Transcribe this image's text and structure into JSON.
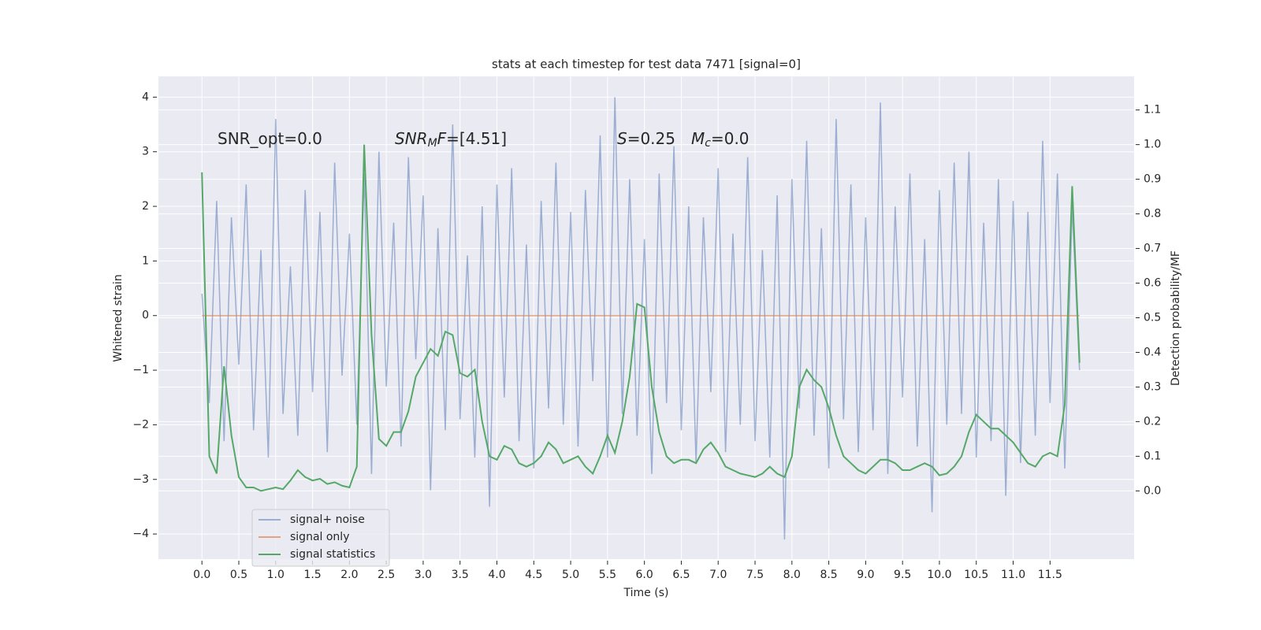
{
  "chart_data": {
    "type": "line",
    "title": "stats at each timestep for test data 7471 [signal=0]",
    "xlabel": "Time (s)",
    "ylabel": "Whitened strain",
    "y2label": "Detection probability/MF",
    "x": [
      0,
      0.1,
      0.2,
      0.3,
      0.4,
      0.5,
      0.6,
      0.7,
      0.8,
      0.9,
      1,
      1.1,
      1.2,
      1.3,
      1.4,
      1.5,
      1.6,
      1.7,
      1.8,
      1.9,
      2,
      2.1,
      2.2,
      2.3,
      2.4,
      2.5,
      2.6,
      2.7,
      2.8,
      2.9,
      3,
      3.1,
      3.2,
      3.3,
      3.4,
      3.5,
      3.6,
      3.7,
      3.8,
      3.9,
      4,
      4.1,
      4.2,
      4.3,
      4.4,
      4.5,
      4.6,
      4.7,
      4.8,
      4.9,
      5,
      5.1,
      5.2,
      5.3,
      5.4,
      5.5,
      5.6,
      5.7,
      5.8,
      5.9,
      6,
      6.1,
      6.2,
      6.3,
      6.4,
      6.5,
      6.6,
      6.7,
      6.8,
      6.9,
      7,
      7.1,
      7.2,
      7.3,
      7.4,
      7.5,
      7.6,
      7.7,
      7.8,
      7.9,
      8,
      8.1,
      8.2,
      8.3,
      8.4,
      8.5,
      8.6,
      8.7,
      8.8,
      8.9,
      9,
      9.1,
      9.2,
      9.3,
      9.4,
      9.5,
      9.6,
      9.7,
      9.8,
      9.9,
      10,
      10.1,
      10.2,
      10.3,
      10.4,
      10.5,
      10.6,
      10.7,
      10.8,
      10.9,
      11,
      11.1,
      11.2,
      11.3,
      11.4,
      11.5,
      11.6,
      11.7,
      11.8,
      11.9
    ],
    "series": [
      {
        "name": "signal+ noise",
        "color": "#4c72b0",
        "opacity": 0.5,
        "values": [
          0.4,
          -1.6,
          2.1,
          -2.3,
          1.8,
          -0.9,
          2.4,
          -2.1,
          1.2,
          -2.6,
          3.6,
          -1.8,
          0.9,
          -2.2,
          2.3,
          -1.4,
          1.9,
          -2.5,
          2.8,
          -1.1,
          1.5,
          -2.0,
          2.6,
          -2.9,
          3.0,
          -1.3,
          1.7,
          -2.4,
          2.9,
          -0.8,
          2.2,
          -3.2,
          1.6,
          -2.1,
          3.5,
          -1.9,
          1.1,
          -2.6,
          2.0,
          -3.5,
          2.4,
          -1.5,
          2.7,
          -2.3,
          1.3,
          -2.8,
          2.1,
          -1.7,
          2.8,
          -2.0,
          1.9,
          -2.4,
          2.3,
          -1.2,
          3.3,
          -2.6,
          4.0,
          -1.8,
          2.5,
          -2.2,
          1.4,
          -2.9,
          2.6,
          -1.6,
          3.1,
          -2.1,
          2.0,
          -2.7,
          1.8,
          -1.4,
          2.7,
          -2.5,
          1.5,
          -2.0,
          2.9,
          -2.3,
          1.2,
          -2.6,
          2.2,
          -4.1,
          2.5,
          -1.7,
          3.2,
          -2.2,
          1.6,
          -2.8,
          3.6,
          -1.9,
          2.4,
          -2.5,
          1.8,
          -2.1,
          3.9,
          -2.9,
          2.0,
          -1.5,
          2.6,
          -2.4,
          1.4,
          -3.6,
          2.3,
          -2.0,
          2.8,
          -1.8,
          3.0,
          -2.6,
          1.7,
          -2.3,
          2.5,
          -3.3,
          2.1,
          -2.7,
          1.9,
          -2.2,
          3.2,
          -1.6,
          2.6,
          -2.8,
          2.0,
          -1.0
        ]
      },
      {
        "name": "signal only",
        "color": "#dd8452",
        "opacity": 0.7,
        "values": [
          0,
          0,
          0,
          0,
          0,
          0,
          0,
          0,
          0,
          0,
          0,
          0,
          0,
          0,
          0,
          0,
          0,
          0,
          0,
          0,
          0,
          0,
          0,
          0,
          0,
          0,
          0,
          0,
          0,
          0,
          0,
          0,
          0,
          0,
          0,
          0,
          0,
          0,
          0,
          0,
          0,
          0,
          0,
          0,
          0,
          0,
          0,
          0,
          0,
          0,
          0,
          0,
          0,
          0,
          0,
          0,
          0,
          0,
          0,
          0,
          0,
          0,
          0,
          0,
          0,
          0,
          0,
          0,
          0,
          0,
          0,
          0,
          0,
          0,
          0,
          0,
          0,
          0,
          0,
          0,
          0,
          0,
          0,
          0,
          0,
          0,
          0,
          0,
          0,
          0,
          0,
          0,
          0,
          0,
          0,
          0,
          0,
          0,
          0,
          0,
          0,
          0,
          0,
          0,
          0,
          0,
          0,
          0,
          0,
          0,
          0,
          0,
          0,
          0,
          0,
          0,
          0,
          0,
          0,
          0
        ]
      },
      {
        "name": "signal statistics",
        "color": "#55a868",
        "opacity": 1,
        "axis": "y2",
        "values": [
          0.92,
          0.1,
          0.05,
          0.36,
          0.16,
          0.04,
          0.01,
          0.01,
          0.0,
          0.005,
          0.01,
          0.005,
          0.03,
          0.06,
          0.04,
          0.03,
          0.035,
          0.02,
          0.025,
          0.015,
          0.01,
          0.07,
          1.0,
          0.45,
          0.15,
          0.13,
          0.17,
          0.17,
          0.23,
          0.33,
          0.37,
          0.41,
          0.39,
          0.46,
          0.45,
          0.34,
          0.33,
          0.35,
          0.2,
          0.1,
          0.09,
          0.13,
          0.12,
          0.08,
          0.07,
          0.08,
          0.1,
          0.14,
          0.12,
          0.08,
          0.09,
          0.1,
          0.07,
          0.05,
          0.1,
          0.16,
          0.11,
          0.2,
          0.33,
          0.54,
          0.53,
          0.3,
          0.17,
          0.1,
          0.08,
          0.09,
          0.09,
          0.08,
          0.12,
          0.14,
          0.11,
          0.07,
          0.06,
          0.05,
          0.045,
          0.04,
          0.05,
          0.07,
          0.05,
          0.04,
          0.1,
          0.3,
          0.35,
          0.32,
          0.3,
          0.24,
          0.16,
          0.1,
          0.08,
          0.06,
          0.05,
          0.07,
          0.09,
          0.09,
          0.08,
          0.06,
          0.06,
          0.07,
          0.08,
          0.07,
          0.045,
          0.05,
          0.07,
          0.1,
          0.17,
          0.22,
          0.2,
          0.18,
          0.18,
          0.16,
          0.14,
          0.11,
          0.08,
          0.07,
          0.1,
          0.11,
          0.1,
          0.25,
          0.88,
          0.37
        ]
      }
    ],
    "xlim": [
      -0.59,
      12.64
    ],
    "xticks": [
      {
        "value": 0,
        "label": "0.0"
      },
      0.5,
      {
        "value": 1,
        "label": "1.0"
      },
      1.5,
      {
        "value": 2,
        "label": "2.0"
      },
      2.5,
      {
        "value": 3,
        "label": "3.0"
      },
      3.5,
      {
        "value": 4,
        "label": "4.0"
      },
      4.5,
      {
        "value": 5,
        "label": "5.0"
      },
      5.5,
      {
        "value": 6,
        "label": "6.0"
      },
      6.5,
      {
        "value": 7,
        "label": "7.0"
      },
      7.5,
      {
        "value": 8,
        "label": "8.0"
      },
      8.5,
      {
        "value": 9,
        "label": "9.0"
      },
      9.5,
      {
        "value": 10,
        "label": "10.0"
      },
      10.5,
      {
        "value": 11,
        "label": "11.0"
      },
      11.5
    ],
    "ylim": [
      -4.46,
      4.38
    ],
    "yticks": [
      {
        "value": -4,
        "label": "−4"
      },
      {
        "value": -3,
        "label": "−3"
      },
      {
        "value": -2,
        "label": "−2"
      },
      {
        "value": -1,
        "label": "−1"
      },
      0,
      1,
      2,
      3,
      4
    ],
    "y2lim": [
      -0.197,
      1.197
    ],
    "y2ticks": [
      {
        "value": 0,
        "label": "0.0"
      },
      0.1,
      0.2,
      0.3,
      0.4,
      0.5,
      0.6,
      0.7,
      0.8,
      0.9,
      {
        "value": 1,
        "label": "1.0"
      },
      1.1
    ],
    "grid": true,
    "legend": "lower left",
    "annotations": [
      {
        "parts": [
          {
            "text": "SNR_opt=0.0"
          }
        ]
      },
      {
        "parts": [
          {
            "text": "SNR",
            "style": "math"
          },
          {
            "text": "M",
            "style": "sub"
          },
          {
            "text": "F",
            "style": "math"
          },
          {
            "text": "=[4.51]"
          }
        ]
      },
      {
        "parts": [
          {
            "text": "S",
            "style": "math"
          },
          {
            "text": "=0.25"
          }
        ]
      },
      {
        "parts": [
          {
            "text": "M",
            "style": "math"
          },
          {
            "text": "c",
            "style": "sub"
          },
          {
            "text": "=0.0"
          }
        ]
      }
    ]
  }
}
